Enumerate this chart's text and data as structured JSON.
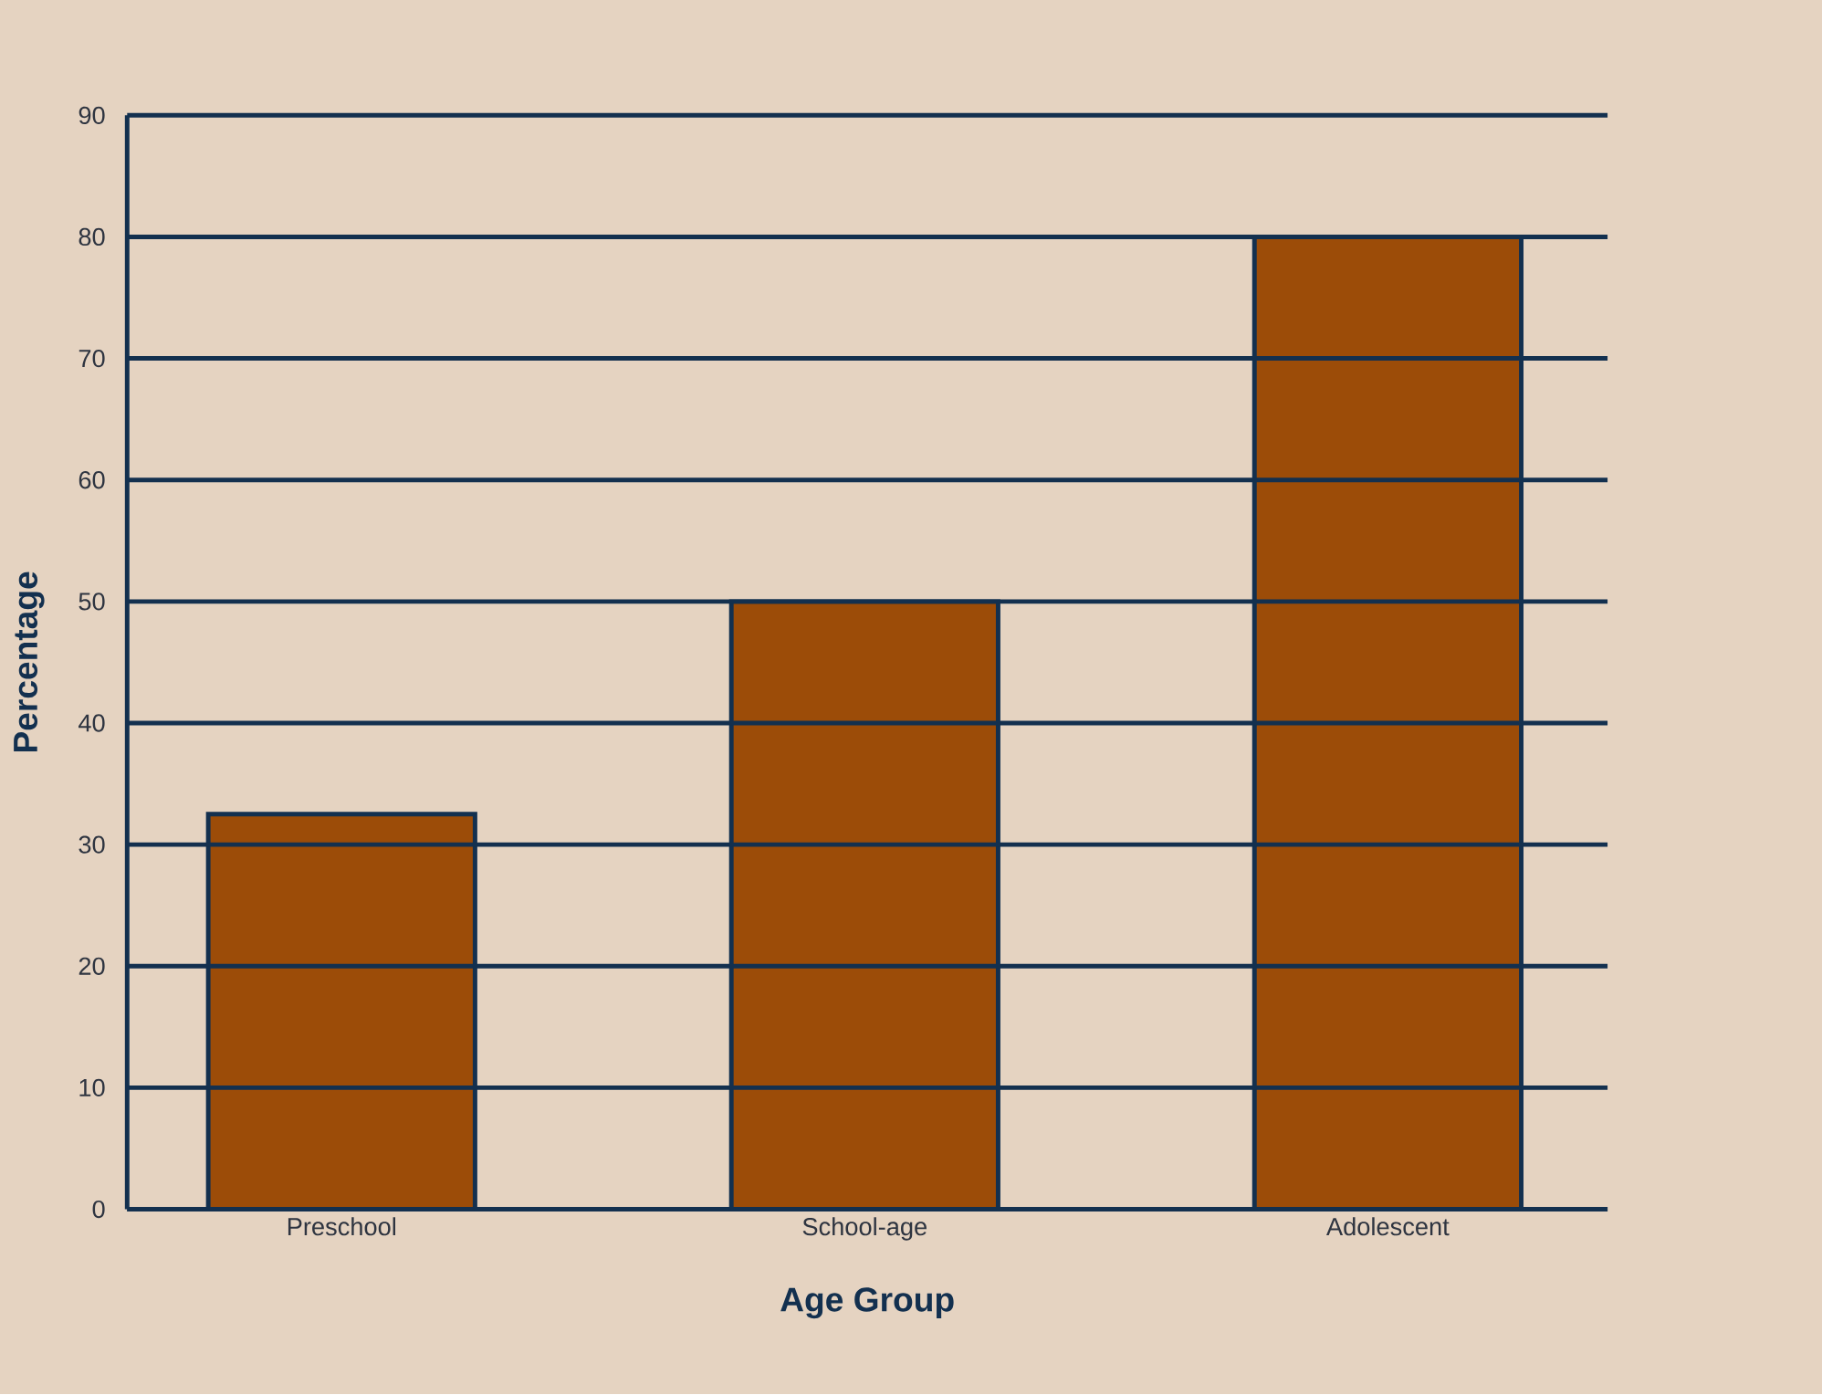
{
  "chart_data": {
    "type": "bar",
    "xlabel": "Age Group",
    "ylabel": "Percentage",
    "categories": [
      "Preschool",
      "School-age",
      "Adolescent"
    ],
    "values": [
      32.5,
      50,
      80
    ],
    "color": "#9c4c08",
    "ylim": [
      0,
      90
    ],
    "yticks": [
      0,
      10,
      20,
      30,
      40,
      50,
      60,
      70,
      80,
      90
    ],
    "grid": "y"
  }
}
